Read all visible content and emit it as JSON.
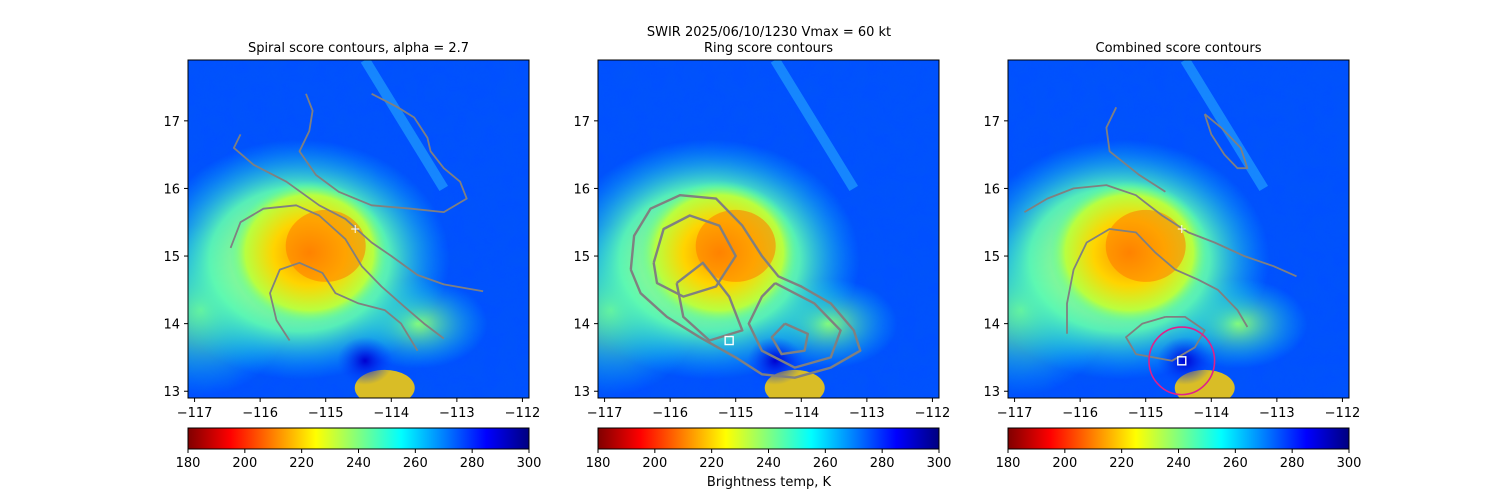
{
  "suptitle": "SWIR  2025/06/10/1230    Vmax = 60 kt",
  "colorbar_label": "Brightness temp, K",
  "colormap": {
    "name": "jet_r",
    "stops": [
      "#800000",
      "#ff0000",
      "#ff8000",
      "#ffff00",
      "#80ff80",
      "#00ffff",
      "#0080ff",
      "#0000ff",
      "#000080"
    ]
  },
  "chart_data": [
    {
      "type": "heatmap",
      "title": "Spiral score contours, alpha =  2.7",
      "xlim": [
        -117.1,
        -111.9
      ],
      "ylim": [
        12.9,
        17.9
      ],
      "xticks": [
        -117,
        -116,
        -115,
        -114,
        -113,
        -112
      ],
      "xtick_labels": [
        "−117",
        "−116",
        "−115",
        "−114",
        "−113",
        "−112"
      ],
      "yticks": [
        13,
        14,
        15,
        16,
        17
      ],
      "ytick_labels": [
        "13",
        "14",
        "15",
        "16",
        "17"
      ],
      "colorbar": {
        "range": [
          180,
          300
        ],
        "ticks": [
          180,
          200,
          220,
          240,
          260,
          280,
          300
        ]
      },
      "contour_color": "#808080",
      "contours": [
        [
          [
            -116.3,
            16.8
          ],
          [
            -116.4,
            16.6
          ],
          [
            -116.1,
            16.35
          ],
          [
            -115.6,
            16.1
          ],
          [
            -115.1,
            15.75
          ],
          [
            -114.7,
            15.55
          ],
          [
            -114.3,
            15.2
          ],
          [
            -114.0,
            15.0
          ],
          [
            -113.6,
            14.72
          ],
          [
            -113.2,
            14.58
          ],
          [
            -112.6,
            14.48
          ]
        ],
        [
          [
            -116.45,
            15.12
          ],
          [
            -116.3,
            15.5
          ],
          [
            -115.95,
            15.7
          ],
          [
            -115.45,
            15.75
          ],
          [
            -115.1,
            15.6
          ],
          [
            -114.7,
            15.25
          ],
          [
            -114.45,
            14.85
          ],
          [
            -114.15,
            14.55
          ],
          [
            -113.8,
            14.25
          ],
          [
            -113.5,
            14.0
          ],
          [
            -113.2,
            13.78
          ]
        ],
        [
          [
            -115.55,
            13.75
          ],
          [
            -115.75,
            14.05
          ],
          [
            -115.85,
            14.45
          ],
          [
            -115.7,
            14.8
          ],
          [
            -115.4,
            14.9
          ],
          [
            -115.05,
            14.75
          ],
          [
            -114.85,
            14.45
          ],
          [
            -114.5,
            14.3
          ],
          [
            -114.1,
            14.2
          ],
          [
            -113.85,
            14.0
          ],
          [
            -113.6,
            13.6
          ]
        ],
        [
          [
            -114.3,
            17.4
          ],
          [
            -113.9,
            17.2
          ],
          [
            -113.65,
            17.05
          ],
          [
            -113.45,
            16.75
          ],
          [
            -113.4,
            16.55
          ],
          [
            -113.2,
            16.3
          ],
          [
            -112.95,
            16.1
          ],
          [
            -112.85,
            15.85
          ],
          [
            -113.2,
            15.65
          ],
          [
            -113.7,
            15.7
          ],
          [
            -114.3,
            15.75
          ],
          [
            -114.8,
            15.95
          ],
          [
            -115.15,
            16.2
          ],
          [
            -115.4,
            16.55
          ],
          [
            -115.25,
            16.85
          ],
          [
            -115.2,
            17.15
          ],
          [
            -115.3,
            17.4
          ]
        ]
      ],
      "markers": [
        {
          "x": -114.55,
          "y": 15.4,
          "shape": "plus",
          "color": "#ffffff"
        }
      ]
    },
    {
      "type": "heatmap",
      "title": "Ring score contours",
      "xlim": [
        -117.1,
        -111.9
      ],
      "ylim": [
        12.9,
        17.9
      ],
      "xticks": [
        -117,
        -116,
        -115,
        -114,
        -113,
        -112
      ],
      "xtick_labels": [
        "−117",
        "−116",
        "−115",
        "−114",
        "−113",
        "−112"
      ],
      "yticks": [
        13,
        14,
        15,
        16,
        17
      ],
      "ytick_labels": [
        "13",
        "14",
        "15",
        "16",
        "17"
      ],
      "colorbar": {
        "range": [
          180,
          300
        ],
        "ticks": [
          180,
          200,
          220,
          240,
          260,
          280,
          300
        ]
      },
      "contour_color": "#808080",
      "contours": [
        [
          [
            -116.6,
            14.8
          ],
          [
            -116.55,
            15.3
          ],
          [
            -116.3,
            15.7
          ],
          [
            -115.85,
            15.9
          ],
          [
            -115.3,
            15.85
          ],
          [
            -114.9,
            15.45
          ],
          [
            -114.6,
            15.0
          ],
          [
            -114.35,
            14.7
          ],
          [
            -114.0,
            14.55
          ],
          [
            -113.55,
            14.3
          ],
          [
            -113.2,
            13.9
          ],
          [
            -113.1,
            13.6
          ],
          [
            -113.55,
            13.35
          ],
          [
            -114.1,
            13.2
          ],
          [
            -114.6,
            13.25
          ],
          [
            -115.0,
            13.5
          ],
          [
            -115.55,
            13.8
          ],
          [
            -116.05,
            14.1
          ],
          [
            -116.45,
            14.45
          ],
          [
            -116.6,
            14.8
          ]
        ],
        [
          [
            -116.25,
            14.9
          ],
          [
            -116.1,
            15.4
          ],
          [
            -115.7,
            15.6
          ],
          [
            -115.25,
            15.45
          ],
          [
            -115.0,
            15.0
          ],
          [
            -115.3,
            14.55
          ],
          [
            -115.8,
            14.4
          ],
          [
            -116.2,
            14.6
          ],
          [
            -116.25,
            14.9
          ]
        ],
        [
          [
            -114.4,
            14.6
          ],
          [
            -113.8,
            14.3
          ],
          [
            -113.4,
            13.9
          ],
          [
            -113.55,
            13.5
          ],
          [
            -114.1,
            13.35
          ],
          [
            -114.6,
            13.6
          ],
          [
            -114.8,
            14.0
          ],
          [
            -114.6,
            14.4
          ],
          [
            -114.4,
            14.6
          ]
        ],
        [
          [
            -115.9,
            14.6
          ],
          [
            -115.5,
            14.9
          ],
          [
            -115.1,
            14.4
          ],
          [
            -114.9,
            13.9
          ],
          [
            -115.4,
            13.75
          ],
          [
            -115.8,
            14.1
          ],
          [
            -115.9,
            14.6
          ]
        ],
        [
          [
            -114.25,
            14.0
          ],
          [
            -113.9,
            13.85
          ],
          [
            -113.95,
            13.6
          ],
          [
            -114.3,
            13.55
          ],
          [
            -114.45,
            13.8
          ],
          [
            -114.25,
            14.0
          ]
        ]
      ],
      "markers": [
        {
          "x": -115.1,
          "y": 13.75,
          "shape": "square",
          "color": "#ffffff"
        }
      ]
    },
    {
      "type": "heatmap",
      "title": "Combined score contours",
      "xlim": [
        -117.1,
        -111.9
      ],
      "ylim": [
        12.9,
        17.9
      ],
      "xticks": [
        -117,
        -116,
        -115,
        -114,
        -113,
        -112
      ],
      "xtick_labels": [
        "−117",
        "−116",
        "−115",
        "−114",
        "−113",
        "−112"
      ],
      "yticks": [
        13,
        14,
        15,
        16,
        17
      ],
      "ytick_labels": [
        "13",
        "14",
        "15",
        "16",
        "17"
      ],
      "colorbar": {
        "range": [
          180,
          300
        ],
        "ticks": [
          180,
          200,
          220,
          240,
          260,
          280,
          300
        ]
      },
      "contour_color": "#808080",
      "contours": [
        [
          [
            -116.85,
            15.65
          ],
          [
            -116.5,
            15.85
          ],
          [
            -116.1,
            16.0
          ],
          [
            -115.6,
            16.05
          ],
          [
            -115.15,
            15.9
          ],
          [
            -114.75,
            15.6
          ],
          [
            -114.35,
            15.35
          ],
          [
            -113.95,
            15.2
          ],
          [
            -113.5,
            15.0
          ],
          [
            -113.05,
            14.85
          ],
          [
            -112.7,
            14.7
          ]
        ],
        [
          [
            -116.2,
            13.85
          ],
          [
            -116.2,
            14.3
          ],
          [
            -116.1,
            14.8
          ],
          [
            -115.9,
            15.2
          ],
          [
            -115.55,
            15.4
          ],
          [
            -115.15,
            15.35
          ],
          [
            -114.85,
            15.05
          ],
          [
            -114.55,
            14.8
          ],
          [
            -114.2,
            14.65
          ],
          [
            -113.9,
            14.5
          ],
          [
            -113.6,
            14.2
          ],
          [
            -113.45,
            13.95
          ]
        ],
        [
          [
            -114.1,
            17.1
          ],
          [
            -114.0,
            16.8
          ],
          [
            -113.8,
            16.5
          ],
          [
            -113.6,
            16.3
          ],
          [
            -113.45,
            16.3
          ],
          [
            -113.55,
            16.6
          ],
          [
            -113.85,
            16.9
          ],
          [
            -114.1,
            17.1
          ]
        ],
        [
          [
            -114.7,
            14.1
          ],
          [
            -115.05,
            14.0
          ],
          [
            -115.3,
            13.8
          ],
          [
            -115.15,
            13.55
          ],
          [
            -114.6,
            13.45
          ],
          [
            -114.25,
            13.65
          ],
          [
            -114.1,
            13.9
          ],
          [
            -114.4,
            14.1
          ],
          [
            -114.7,
            14.1
          ]
        ],
        [
          [
            -115.45,
            17.2
          ],
          [
            -115.6,
            16.9
          ],
          [
            -115.55,
            16.55
          ],
          [
            -115.1,
            16.2
          ],
          [
            -114.7,
            15.95
          ]
        ]
      ],
      "circle": {
        "cx": -114.45,
        "cy": 13.45,
        "r": 0.5,
        "color": "#e0208a"
      },
      "markers": [
        {
          "x": -114.45,
          "y": 15.4,
          "shape": "plus",
          "color": "#ffffff"
        },
        {
          "x": -114.45,
          "y": 13.45,
          "shape": "square",
          "color": "#ffffff"
        }
      ]
    }
  ]
}
